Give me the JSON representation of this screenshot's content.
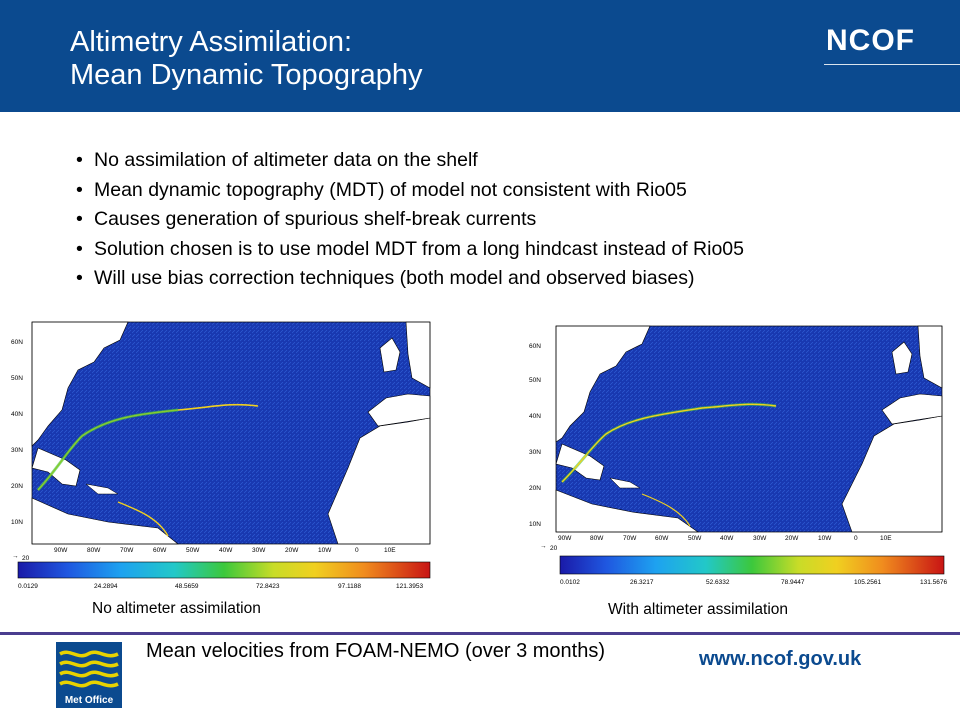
{
  "header": {
    "title_line1": "Altimetry Assimilation:",
    "title_line2": "Mean Dynamic Topography",
    "brand": "NCOF",
    "background_color": "#0b4a8f"
  },
  "bullets": [
    "No assimilation of altimeter data on the shelf",
    "Mean dynamic topography (MDT) of model not consistent with Rio05",
    "Causes generation of spurious shelf-break currents",
    "Solution chosen is to use model MDT from a long hindcast instead of Rio05",
    "Will use bias correction techniques (both model and observed biases)"
  ],
  "maps": [
    {
      "caption": "No altimeter assimilation",
      "lat_labels": [
        "60N",
        "50N",
        "40N",
        "30N",
        "20N",
        "10N"
      ],
      "lon_labels": [
        "90W",
        "80W",
        "70W",
        "60W",
        "50W",
        "40W",
        "30W",
        "20W",
        "10W",
        "0",
        "10E"
      ],
      "scale_note": "20",
      "colorbar_labels": [
        "0.0129",
        "24.2894",
        "48.5659",
        "72.8423",
        "97.1188",
        "121.3953"
      ]
    },
    {
      "caption": "With altimeter assimilation",
      "lat_labels": [
        "60N",
        "50N",
        "40N",
        "30N",
        "20N",
        "10N"
      ],
      "lon_labels": [
        "90W",
        "80W",
        "70W",
        "60W",
        "50W",
        "40W",
        "30W",
        "20W",
        "10W",
        "0",
        "10E"
      ],
      "scale_note": "20",
      "colorbar_labels": [
        "0.0102",
        "26.3217",
        "52.6332",
        "78.9447",
        "105.2561",
        "131.5676"
      ]
    }
  ],
  "footer": {
    "text": "Mean velocities from FOAM-NEMO (over 3 months)",
    "url": "www.ncof.gov.uk",
    "logo_text": "Met Office"
  }
}
